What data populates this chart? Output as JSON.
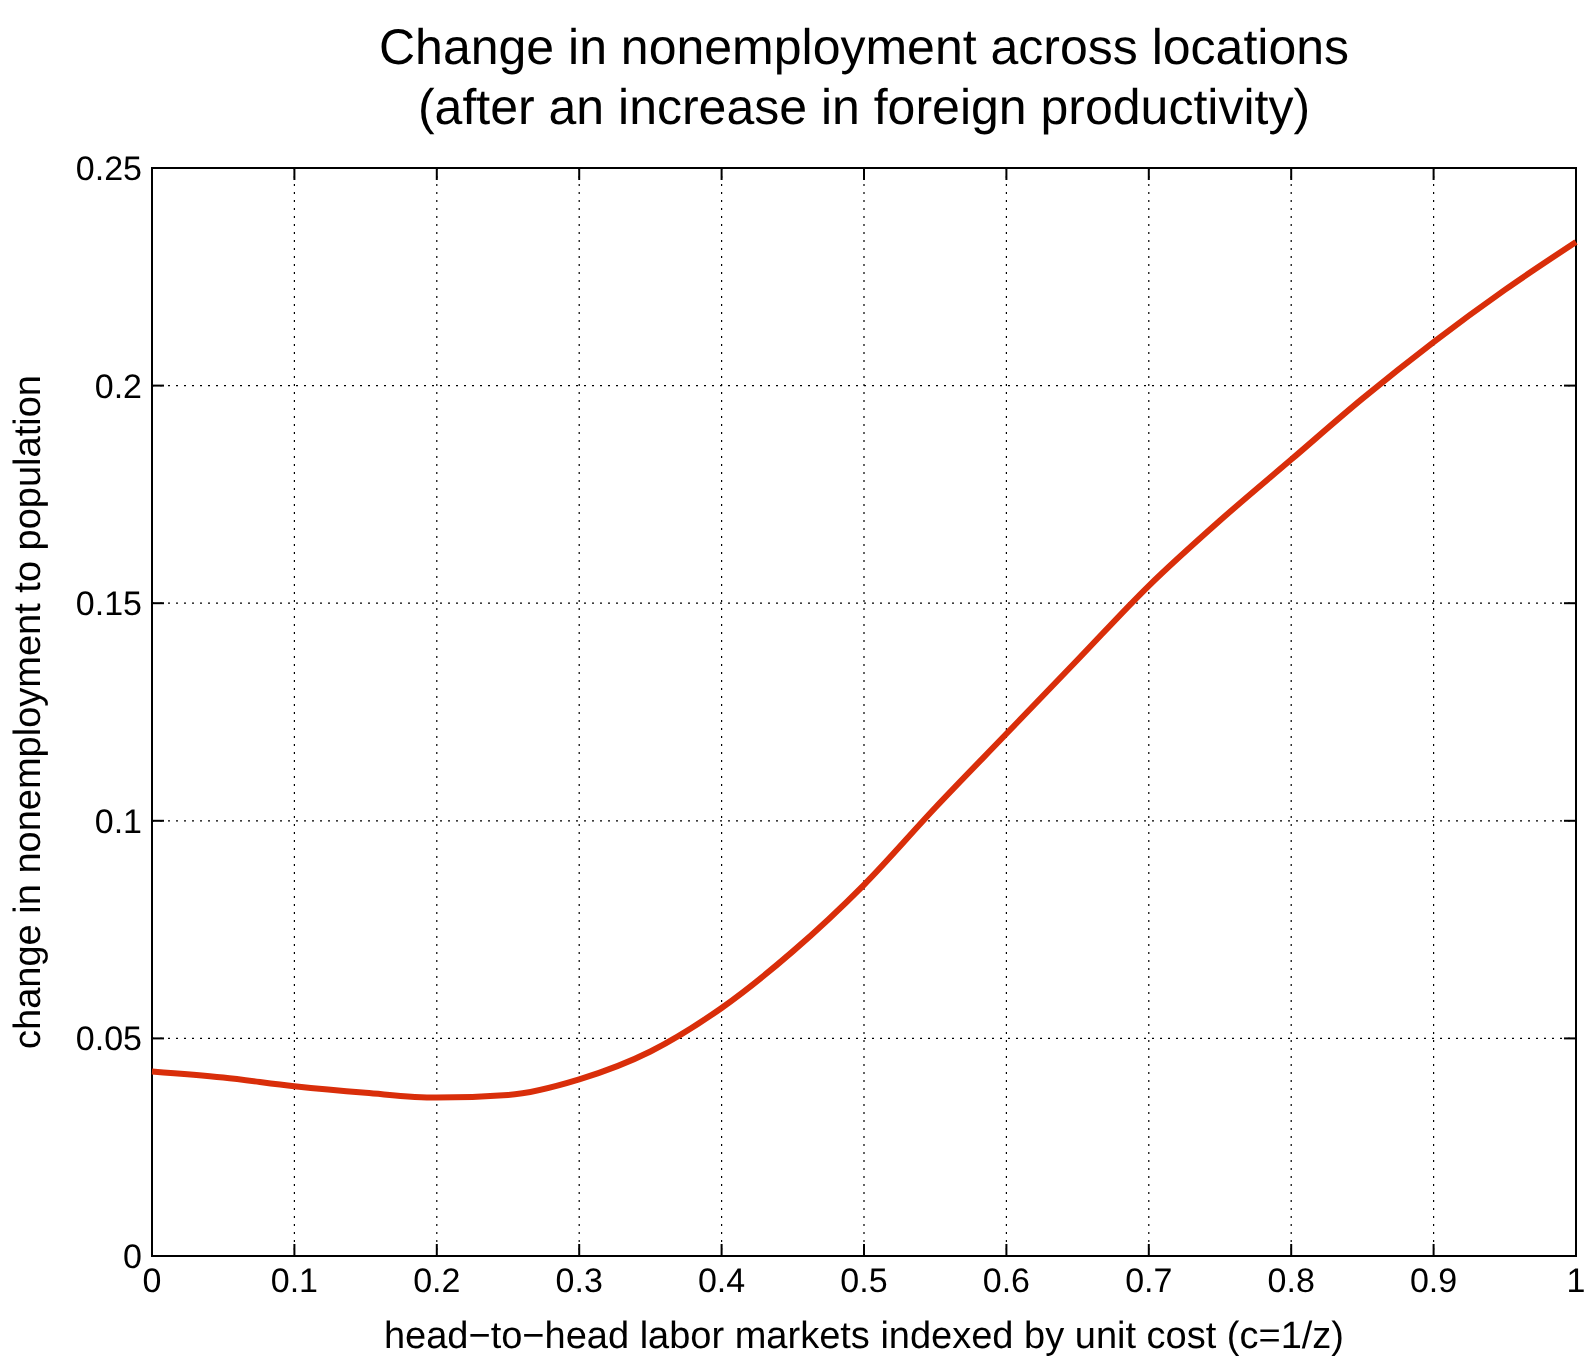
{
  "chart_data": {
    "type": "line",
    "title": "Change in nonemployment across locations\n(after an increase in foreign productivity)",
    "xlabel": "head−to−head labor markets indexed by unit cost (c=1/z)",
    "ylabel": "change in nonemployment to population",
    "x": [
      0,
      0.05,
      0.1,
      0.15,
      0.2,
      0.25,
      0.3,
      0.35,
      0.4,
      0.45,
      0.5,
      0.55,
      0.6,
      0.65,
      0.7,
      0.75,
      0.8,
      0.85,
      0.9,
      0.95,
      1
    ],
    "series": [
      {
        "color": "#d92e0a",
        "values": [
          0.0424,
          0.041,
          0.039,
          0.0375,
          0.0364,
          0.037,
          0.0406,
          0.047,
          0.057,
          0.07,
          0.0853,
          0.103,
          0.12,
          0.137,
          0.154,
          0.169,
          0.183,
          0.197,
          0.21,
          0.222,
          0.233
        ]
      }
    ],
    "xlim": [
      0,
      1
    ],
    "ylim": [
      0,
      0.25
    ],
    "xticks": [
      0,
      0.1,
      0.2,
      0.3,
      0.4,
      0.5,
      0.6,
      0.7,
      0.8,
      0.9,
      1
    ],
    "yticks": [
      0,
      0.05,
      0.1,
      0.15,
      0.2,
      0.25
    ],
    "grid": true,
    "line_style": "solid",
    "marker": "none"
  }
}
